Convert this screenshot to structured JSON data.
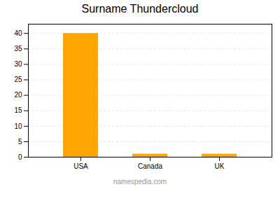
{
  "chart_data": {
    "type": "bar",
    "title": "Surname Thundercloud",
    "categories": [
      "USA",
      "Canada",
      "UK"
    ],
    "values": [
      40,
      1,
      1
    ],
    "color": "#FFA500",
    "ylim": [
      0,
      43
    ],
    "yticks": [
      0,
      5,
      10,
      15,
      20,
      25,
      30,
      35,
      40
    ],
    "grid": true,
    "caption": "namespedia.com"
  }
}
